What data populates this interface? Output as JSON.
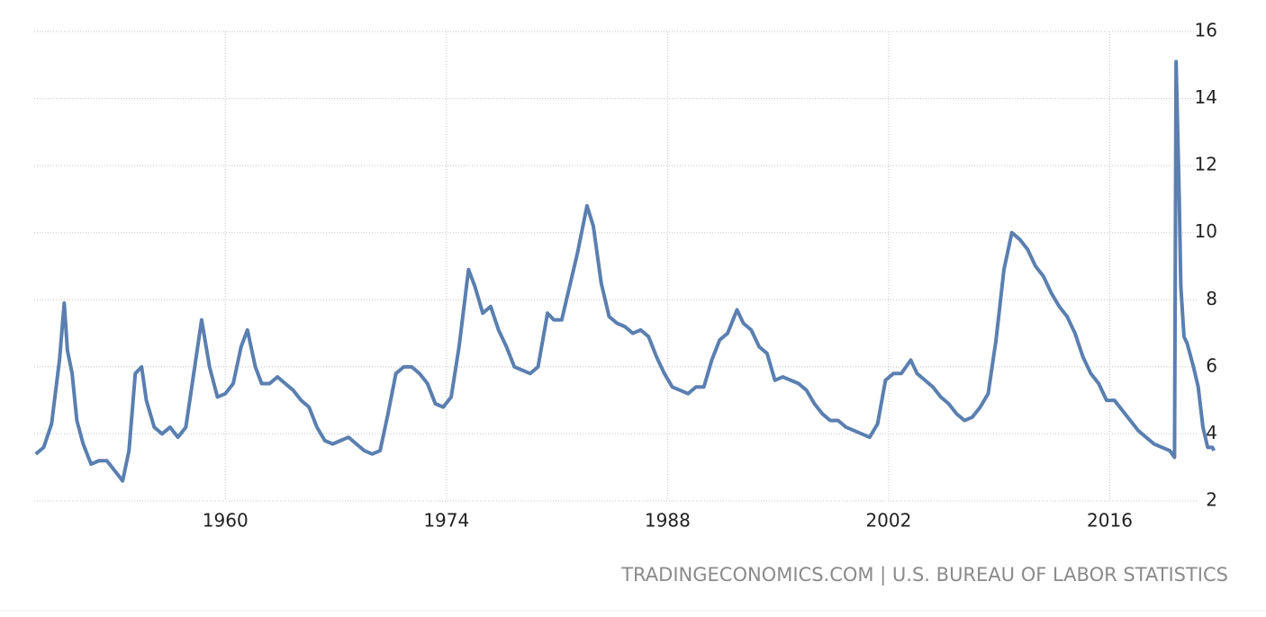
{
  "chart_data": {
    "type": "line",
    "source": "TRADINGECONOMICS.COM | U.S. BUREAU OF LABOR STATISTICS",
    "x": [
      1948.0,
      1948.5,
      1949.0,
      1949.5,
      1949.8,
      1950.0,
      1950.3,
      1950.6,
      1951.0,
      1951.5,
      1952.0,
      1952.5,
      1953.0,
      1953.5,
      1953.9,
      1954.3,
      1954.7,
      1955.0,
      1955.5,
      1956.0,
      1956.5,
      1957.0,
      1957.5,
      1958.0,
      1958.5,
      1959.0,
      1959.5,
      1960.0,
      1960.5,
      1961.0,
      1961.4,
      1961.9,
      1962.3,
      1962.8,
      1963.3,
      1963.8,
      1964.3,
      1964.8,
      1965.3,
      1965.8,
      1966.3,
      1966.8,
      1967.3,
      1967.8,
      1968.3,
      1968.8,
      1969.3,
      1969.8,
      1970.3,
      1970.8,
      1971.3,
      1971.8,
      1972.3,
      1972.8,
      1973.3,
      1973.8,
      1974.3,
      1974.8,
      1975.4,
      1975.8,
      1976.3,
      1976.8,
      1977.3,
      1977.8,
      1978.3,
      1978.8,
      1979.3,
      1979.8,
      1980.4,
      1980.8,
      1981.3,
      1981.8,
      1982.3,
      1982.9,
      1983.3,
      1983.8,
      1984.3,
      1984.8,
      1985.3,
      1985.8,
      1986.3,
      1986.8,
      1987.3,
      1987.8,
      1988.3,
      1988.8,
      1989.3,
      1989.8,
      1990.3,
      1990.8,
      1991.3,
      1991.8,
      1992.4,
      1992.8,
      1993.3,
      1993.8,
      1994.3,
      1994.8,
      1995.3,
      1995.8,
      1996.3,
      1996.8,
      1997.3,
      1997.8,
      1998.3,
      1998.8,
      1999.3,
      1999.8,
      2000.3,
      2000.8,
      2001.3,
      2001.8,
      2002.3,
      2002.8,
      2003.4,
      2003.8,
      2004.3,
      2004.8,
      2005.3,
      2005.8,
      2006.3,
      2006.8,
      2007.3,
      2007.8,
      2008.3,
      2008.8,
      2009.3,
      2009.8,
      2010.3,
      2010.8,
      2011.3,
      2011.8,
      2012.3,
      2012.8,
      2013.3,
      2013.8,
      2014.3,
      2014.8,
      2015.3,
      2015.8,
      2016.3,
      2016.8,
      2017.3,
      2017.8,
      2018.3,
      2018.8,
      2019.3,
      2019.8,
      2020.1,
      2020.2,
      2020.4,
      2020.5,
      2020.7,
      2020.9,
      2021.3,
      2021.6,
      2021.9,
      2022.2,
      2022.5,
      2022.6
    ],
    "values": [
      3.4,
      3.6,
      4.3,
      6.2,
      7.9,
      6.5,
      5.8,
      4.4,
      3.7,
      3.1,
      3.2,
      3.2,
      2.9,
      2.6,
      3.5,
      5.8,
      6.0,
      5.0,
      4.2,
      4.0,
      4.2,
      3.9,
      4.2,
      5.8,
      7.4,
      6.0,
      5.1,
      5.2,
      5.5,
      6.6,
      7.1,
      6.0,
      5.5,
      5.5,
      5.7,
      5.5,
      5.3,
      5.0,
      4.8,
      4.2,
      3.8,
      3.7,
      3.8,
      3.9,
      3.7,
      3.5,
      3.4,
      3.5,
      4.6,
      5.8,
      6.0,
      6.0,
      5.8,
      5.5,
      4.9,
      4.8,
      5.1,
      6.6,
      8.9,
      8.4,
      7.6,
      7.8,
      7.1,
      6.6,
      6.0,
      5.9,
      5.8,
      6.0,
      7.6,
      7.4,
      7.4,
      8.4,
      9.4,
      10.8,
      10.2,
      8.5,
      7.5,
      7.3,
      7.2,
      7.0,
      7.1,
      6.9,
      6.3,
      5.8,
      5.4,
      5.3,
      5.2,
      5.4,
      5.4,
      6.2,
      6.8,
      7.0,
      7.7,
      7.3,
      7.1,
      6.6,
      6.4,
      5.6,
      5.7,
      5.6,
      5.5,
      5.3,
      4.9,
      4.6,
      4.4,
      4.4,
      4.2,
      4.1,
      4.0,
      3.9,
      4.3,
      5.6,
      5.8,
      5.8,
      6.2,
      5.8,
      5.6,
      5.4,
      5.1,
      4.9,
      4.6,
      4.4,
      4.5,
      4.8,
      5.2,
      6.8,
      8.9,
      10.0,
      9.8,
      9.5,
      9.0,
      8.7,
      8.2,
      7.8,
      7.5,
      7.0,
      6.3,
      5.8,
      5.5,
      5.0,
      5.0,
      4.7,
      4.4,
      4.1,
      3.9,
      3.7,
      3.6,
      3.5,
      3.3,
      15.1,
      11.0,
      8.4,
      6.9,
      6.7,
      6.0,
      5.4,
      4.2,
      3.6,
      3.6,
      3.5
    ],
    "color": "#5a7fb0",
    "xlim": [
      1947.9,
      2022.7
    ],
    "xticks": [
      1960,
      1974,
      1988,
      2002,
      2016
    ],
    "ylim": [
      2,
      16
    ],
    "yticks": [
      2,
      4,
      6,
      8,
      10,
      12,
      14,
      16
    ],
    "grid": true
  }
}
